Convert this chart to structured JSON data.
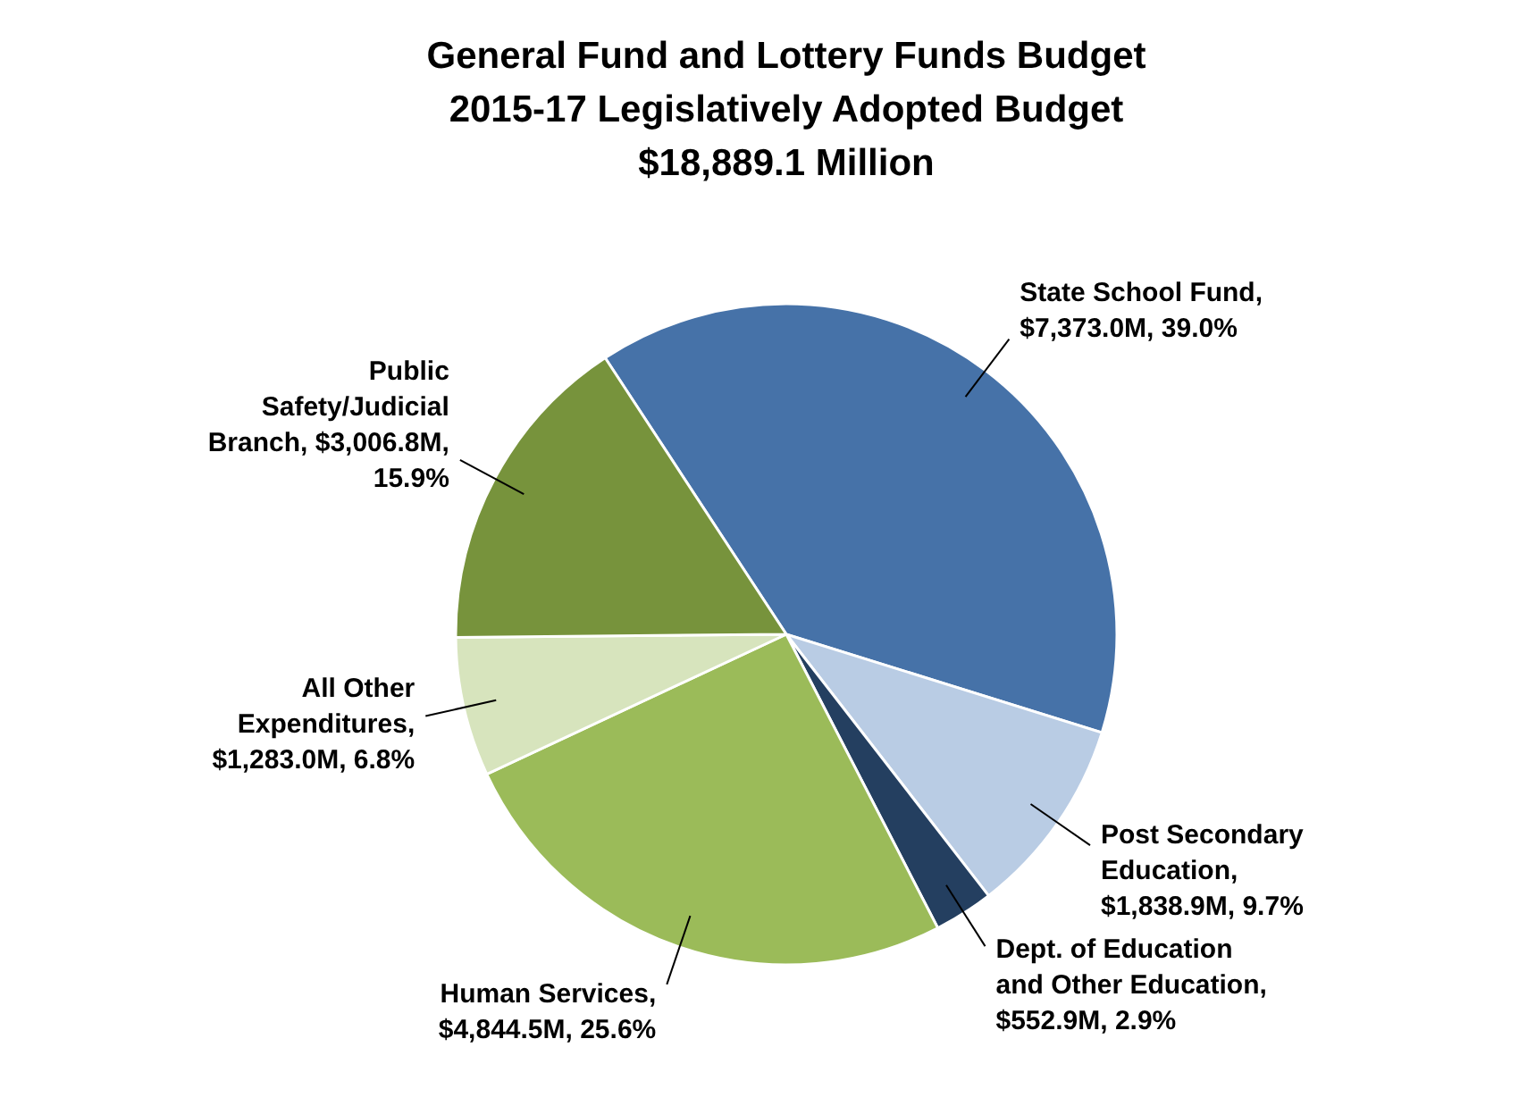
{
  "chart_data": {
    "type": "pie",
    "title": "General Fund and Lottery Funds Budget\n2015-17 Legislatively Adopted Budget\n$18,889.1 Million",
    "categories": [
      "State School Fund, $7,373.0M, 39.0%",
      "Post Secondary Education, $1,838.9M, 9.7%",
      "Dept. of Education and Other Education, $552.9M, 2.9%",
      "Human Services, $4,844.5M, 25.6%",
      "All Other Expenditures, $1,283.0M, 6.8%",
      "Public Safety/Judicial Branch, $3,006.8M, 15.9%"
    ],
    "values": [
      39.0,
      9.7,
      2.9,
      25.6,
      6.8,
      15.9
    ],
    "colors": [
      "#4672a8",
      "#b9cce4",
      "#243f60",
      "#9bbb59",
      "#d7e4bd",
      "#77933c"
    ]
  }
}
